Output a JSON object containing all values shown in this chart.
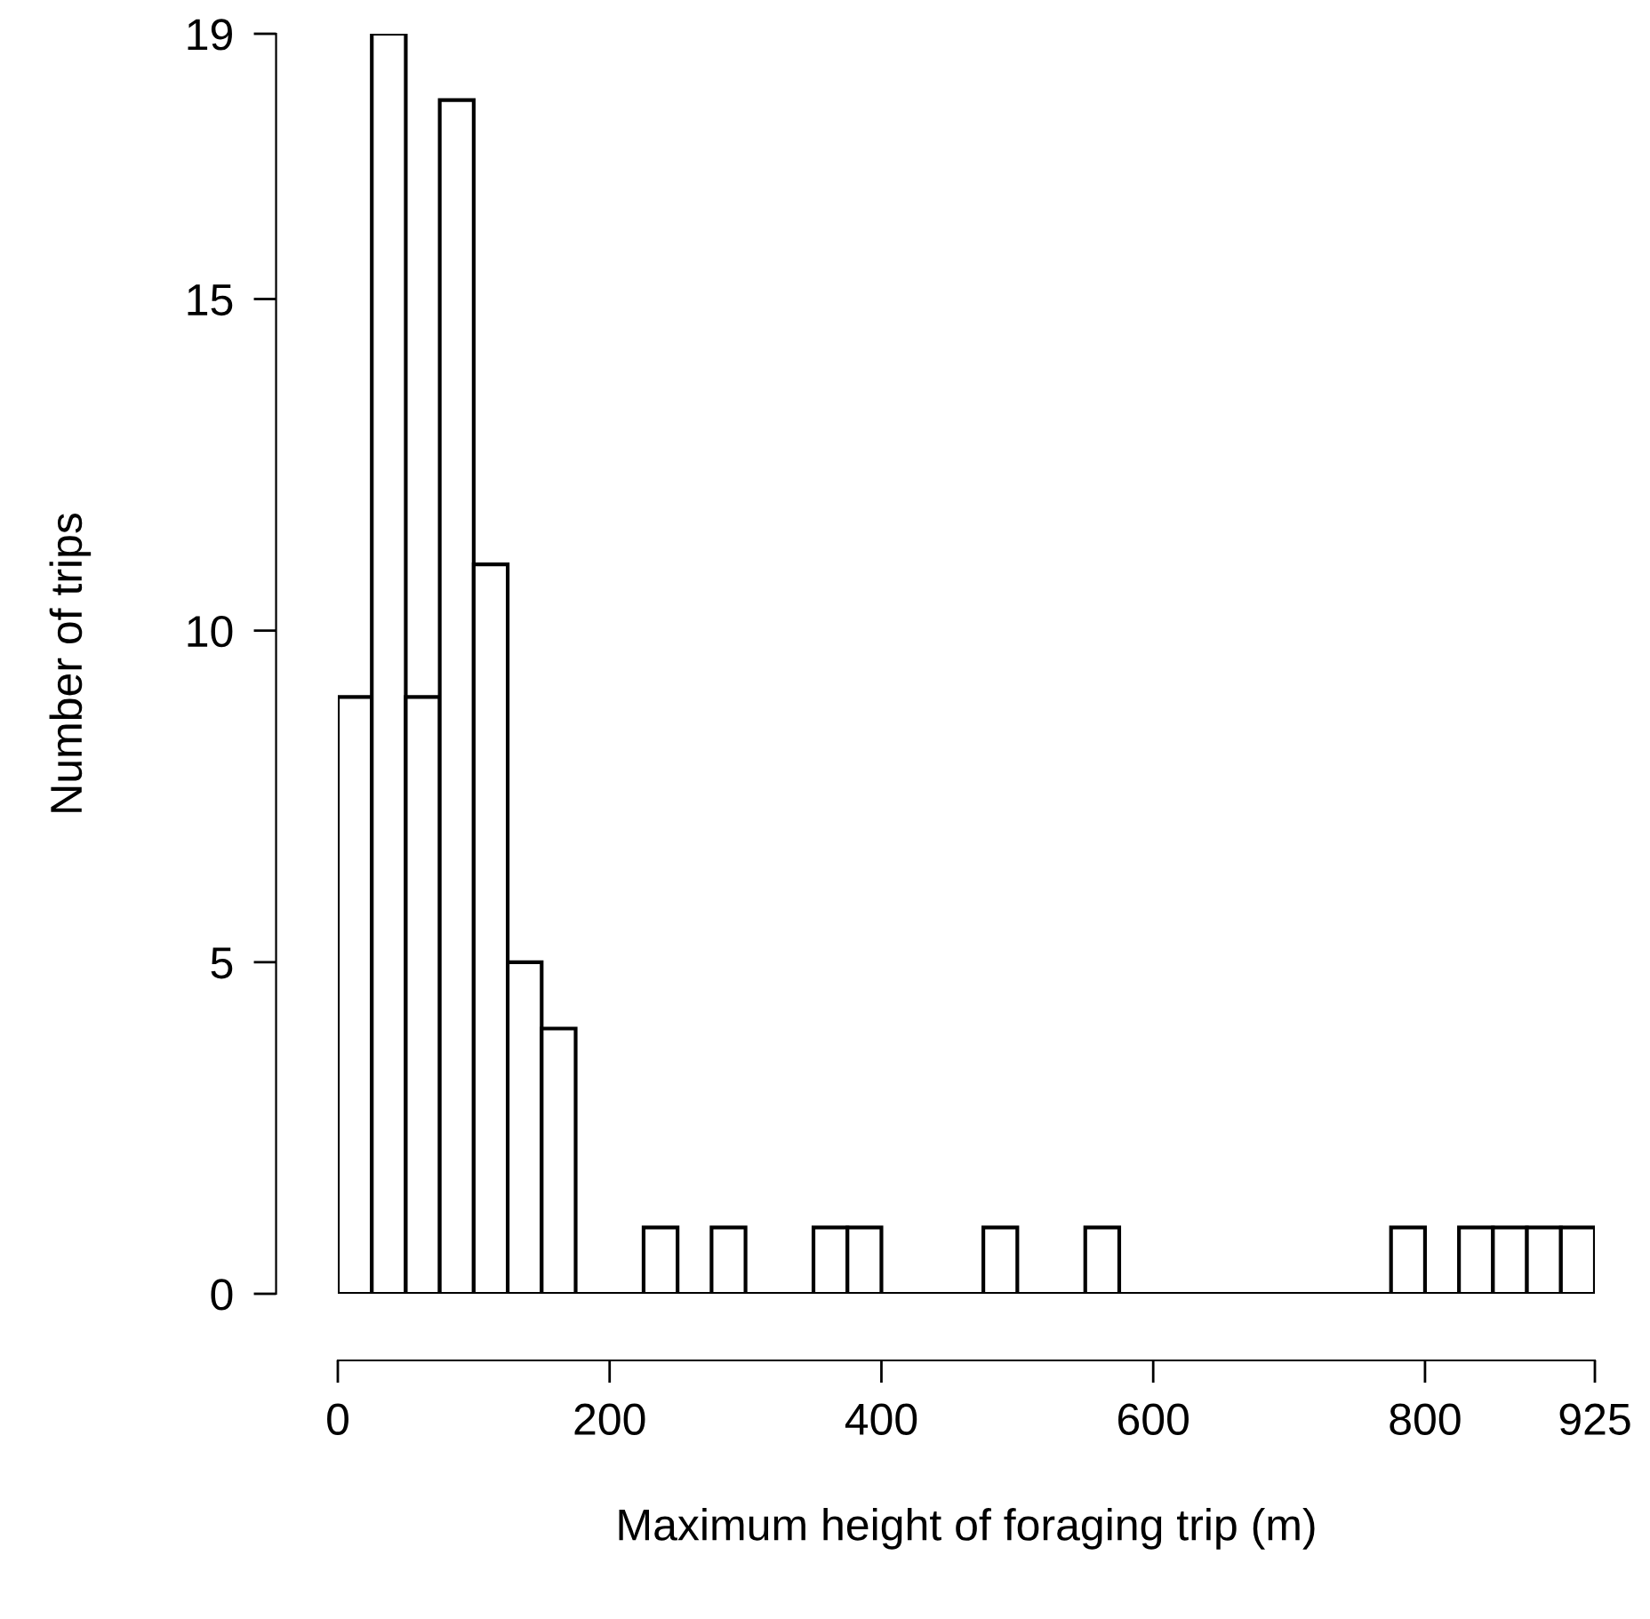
{
  "chart_data": {
    "type": "histogram",
    "xlabel": "Maximum height of foraging trip (m)",
    "ylabel": "Number of trips",
    "bins": [
      0,
      25,
      50,
      75,
      100,
      125,
      150,
      175,
      200,
      225,
      250,
      275,
      300,
      325,
      350,
      375,
      400,
      425,
      450,
      475,
      500,
      525,
      550,
      575,
      600,
      625,
      650,
      675,
      700,
      725,
      750,
      775,
      800,
      825,
      850,
      875,
      900,
      925
    ],
    "values": [
      9,
      19,
      9,
      18,
      11,
      5,
      4,
      0,
      0,
      1,
      0,
      1,
      0,
      0,
      1,
      1,
      0,
      0,
      0,
      1,
      0,
      0,
      1,
      0,
      0,
      0,
      0,
      0,
      0,
      0,
      0,
      1,
      0,
      1,
      1,
      1,
      1
    ],
    "color": "#ffffff",
    "xlim": [
      0,
      925
    ],
    "xticks": [
      0,
      200,
      400,
      600,
      800,
      925
    ],
    "ylim": [
      0,
      19
    ],
    "yticks": [
      0,
      5,
      10,
      15,
      19
    ],
    "grid": false
  }
}
